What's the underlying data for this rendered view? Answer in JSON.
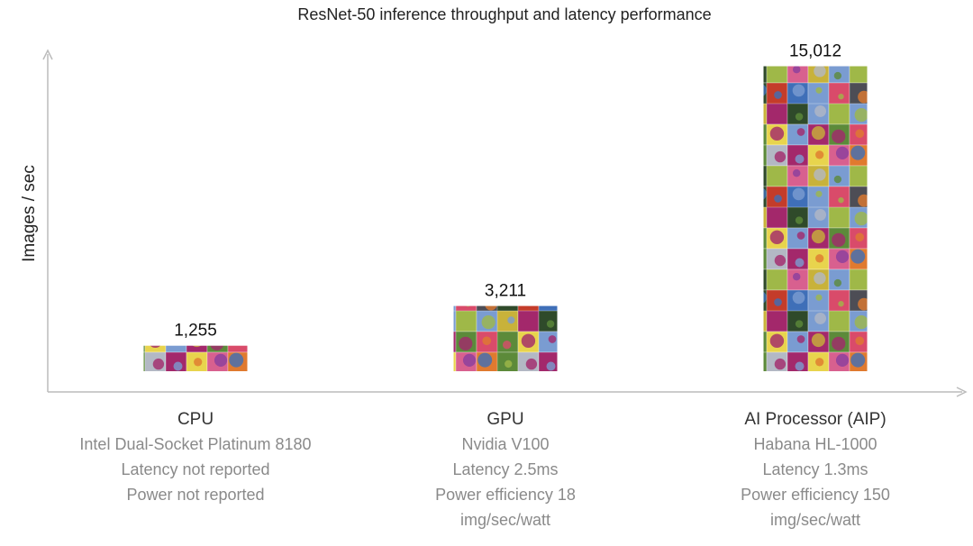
{
  "chart_data": {
    "type": "bar",
    "title": "ResNet-50 inference throughput and latency performance",
    "y_label": "Images / sec",
    "categories": [
      "CPU",
      "GPU",
      "AI Processor (AIP)"
    ],
    "category_details": [
      [
        "Intel Dual-Socket Platinum 8180",
        "Latency not reported",
        "Power not reported"
      ],
      [
        "Nvidia V100",
        "Latency 2.5ms",
        "Power efficiency 18",
        "img/sec/watt"
      ],
      [
        "Habana HL-1000",
        "Latency 1.3ms",
        "Power efficiency 150",
        "img/sec/watt"
      ]
    ],
    "values": [
      1255,
      3211,
      15012
    ],
    "value_labels": [
      "1,255",
      "3,211",
      "15,012"
    ],
    "ylim": [
      0,
      15700
    ]
  }
}
